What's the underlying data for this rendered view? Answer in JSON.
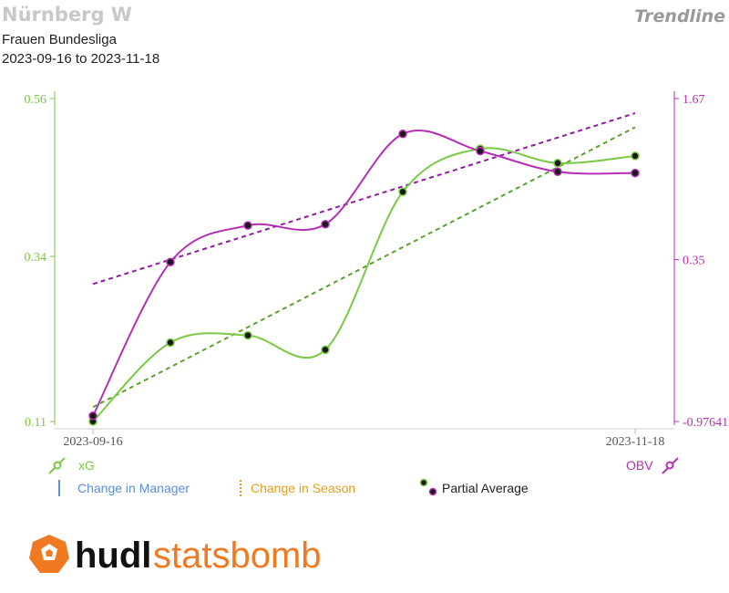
{
  "header": {
    "team": "Nürnberg W",
    "competition": "Frauen Bundesliga",
    "date_range": "2023-09-16 to 2023-11-18",
    "chart_kind": "Trendline"
  },
  "legend": {
    "xg": "xG",
    "obv": "OBV",
    "change_manager": "Change in Manager",
    "change_season": "Change in Season",
    "partial_average": "Partial Average"
  },
  "logo": {
    "brand_bold": "hudl",
    "brand_light": "statsbomb"
  },
  "colors": {
    "xg": "#7ac943",
    "obv": "#b52fb5",
    "xg_trend": "#5aa030",
    "obv_trend": "#8e1e9e",
    "manager": "#5b8fd8",
    "season": "#e0a020",
    "logo": "#f07a22"
  },
  "chart_data": {
    "type": "line",
    "x": [
      "2023-09-16",
      "",
      "",
      "",
      "",
      "",
      "",
      "2023-11-18"
    ],
    "xlabel": "",
    "series": [
      {
        "name": "xG",
        "axis": "left",
        "values": [
          0.11,
          0.22,
          0.23,
          0.21,
          0.43,
          0.49,
          0.47,
          0.48
        ]
      },
      {
        "name": "OBV",
        "axis": "right",
        "values": [
          -0.93,
          0.33,
          0.63,
          0.64,
          1.38,
          1.24,
          1.07,
          1.06
        ]
      }
    ],
    "trendlines": [
      {
        "series": "xG",
        "start": 0.13,
        "end": 0.52
      },
      {
        "series": "OBV",
        "start": 0.15,
        "end": 1.55
      }
    ],
    "left_axis": {
      "ticks": [
        "0.56",
        "0.34",
        "0.11"
      ],
      "values": [
        0.56,
        0.34,
        0.11
      ]
    },
    "right_axis": {
      "ticks": [
        "1.67",
        "0.35",
        "-0.97641"
      ],
      "values": [
        1.67,
        0.35,
        -0.97641
      ]
    },
    "x_tick_labels": [
      "2023-09-16",
      "2023-11-18"
    ]
  }
}
